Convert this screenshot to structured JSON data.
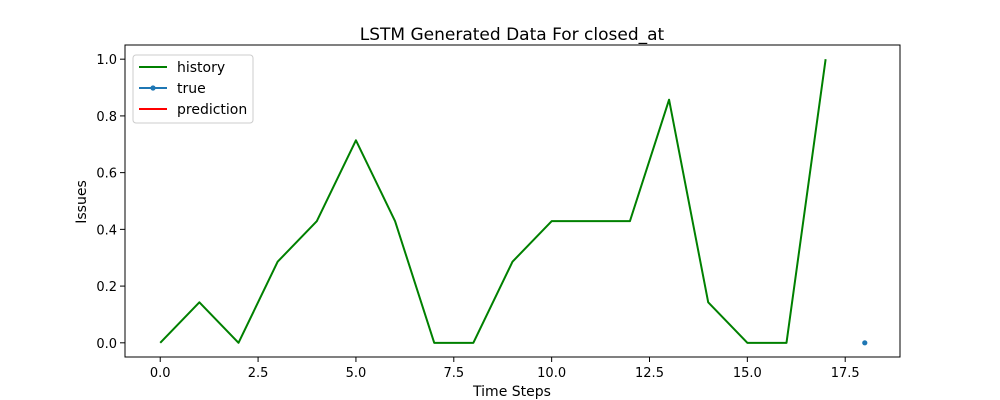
{
  "chart_data": {
    "type": "line",
    "title": "LSTM Generated Data For closed_at",
    "xlabel": "Time Steps",
    "ylabel": "Issues",
    "xlim": [
      -0.9,
      18.9
    ],
    "ylim": [
      -0.05,
      1.05
    ],
    "xticks": [
      0.0,
      2.5,
      5.0,
      7.5,
      10.0,
      12.5,
      15.0,
      17.5
    ],
    "xtick_labels": [
      "0.0",
      "2.5",
      "5.0",
      "7.5",
      "10.0",
      "12.5",
      "15.0",
      "17.5"
    ],
    "yticks": [
      0.0,
      0.2,
      0.4,
      0.6,
      0.8,
      1.0
    ],
    "ytick_labels": [
      "0.0",
      "0.2",
      "0.4",
      "0.6",
      "0.8",
      "1.0"
    ],
    "grid": false,
    "legend_position": "top-left",
    "series": [
      {
        "name": "history",
        "color": "#008000",
        "marker": "none",
        "x": [
          0,
          1,
          2,
          3,
          4,
          5,
          6,
          7,
          8,
          9,
          10,
          11,
          12,
          13,
          14,
          15,
          16,
          17
        ],
        "values": [
          0.0,
          0.143,
          0.0,
          0.286,
          0.429,
          0.714,
          0.429,
          0.0,
          0.0,
          0.286,
          0.429,
          0.429,
          0.429,
          0.857,
          0.143,
          0.0,
          0.0,
          1.0
        ]
      },
      {
        "name": "true",
        "color": "#1f77b4",
        "marker": "dot",
        "x": [
          18
        ],
        "values": [
          0.0
        ]
      },
      {
        "name": "prediction",
        "color": "#ff0000",
        "marker": "none",
        "x": [],
        "values": []
      }
    ]
  }
}
